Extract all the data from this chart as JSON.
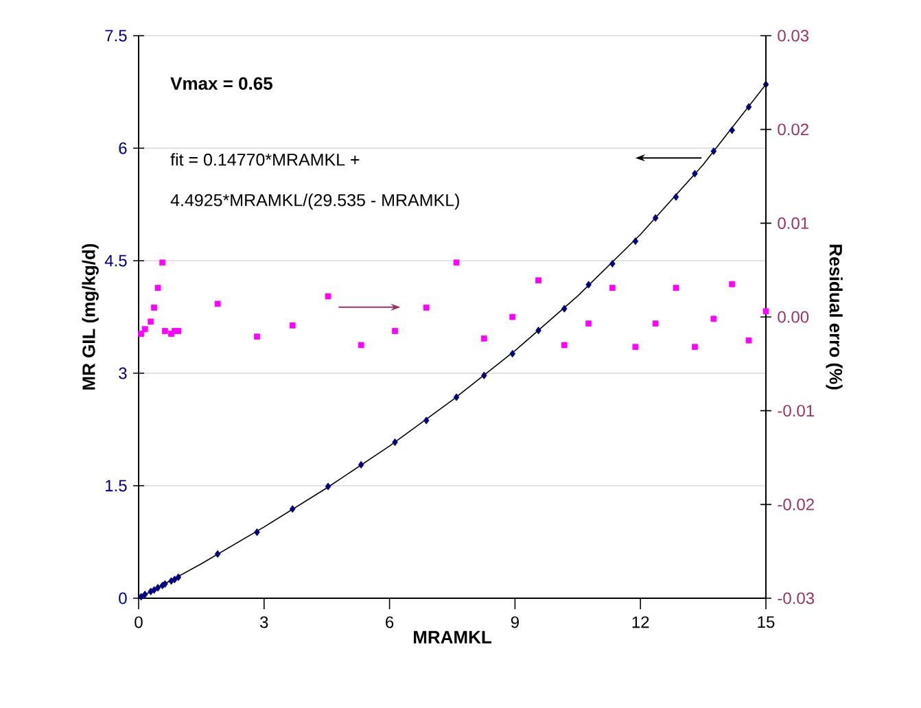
{
  "chart_data": {
    "type": "scatter",
    "xlabel": "MRAMKL",
    "ylabel": "MR GIL (mg/kg/d)",
    "y2label": "Residual erro (%)",
    "xlim": [
      0,
      15
    ],
    "xticks": [
      0,
      3,
      6,
      9,
      12,
      15
    ],
    "ylim": [
      0,
      7.5
    ],
    "yticks": [
      0,
      1.5,
      3,
      4.5,
      6,
      7.5
    ],
    "y2lim": [
      -0.03,
      0.03
    ],
    "y2ticks": [
      -0.03,
      -0.02,
      -0.01,
      {
        "value": 0,
        "label": "0.00"
      },
      0.01,
      0.02,
      0.03
    ],
    "grid": "y",
    "annotations": [
      "Vmax = 0.65",
      "fit  = 0.14770*MRAMKL +",
      "4.4925*MRAMKL/(29.535 - MRAMKL)"
    ],
    "series": [
      {
        "marker": "diamond",
        "color": "#000080",
        "x": [
          0.06,
          0.15,
          0.29,
          0.37,
          0.46,
          0.57,
          0.63,
          0.78,
          0.86,
          0.95,
          1.89,
          2.83,
          3.68,
          4.53,
          5.32,
          6.13,
          6.88,
          7.6,
          8.26,
          8.94,
          9.56,
          10.18,
          10.76,
          11.33,
          11.88,
          12.36,
          12.85,
          13.3,
          13.75,
          14.19,
          14.59,
          15.0
        ],
        "values": [
          0.02,
          0.05,
          0.09,
          0.11,
          0.14,
          0.17,
          0.19,
          0.23,
          0.25,
          0.28,
          0.59,
          0.88,
          1.19,
          1.49,
          1.78,
          2.08,
          2.37,
          2.68,
          2.97,
          3.26,
          3.57,
          3.86,
          4.18,
          4.46,
          4.76,
          5.07,
          5.35,
          5.66,
          5.96,
          6.24,
          6.55,
          6.85
        ]
      },
      {
        "type": "line",
        "marker": "none",
        "color": "#000000",
        "x": [
          0,
          1.5,
          3,
          4.5,
          6,
          7.5,
          9,
          10.5,
          12,
          13.5,
          15
        ],
        "values": [
          0,
          0.46,
          0.95,
          1.47,
          2.03,
          2.64,
          3.3,
          4.03,
          4.85,
          5.78,
          6.85
        ]
      },
      {
        "marker": "square",
        "axis": "y2",
        "color": "#ff00ff",
        "x": [
          0.06,
          0.15,
          0.29,
          0.37,
          0.46,
          0.57,
          0.63,
          0.78,
          0.86,
          0.95,
          1.89,
          2.83,
          3.68,
          4.53,
          5.32,
          6.13,
          6.88,
          7.6,
          8.26,
          8.94,
          9.56,
          10.18,
          10.76,
          11.33,
          11.88,
          12.36,
          12.85,
          13.3,
          13.75,
          14.19,
          14.59,
          15.0
        ],
        "values": [
          -0.0018,
          -0.0013,
          -0.0005,
          0.001,
          0.0031,
          0.0058,
          -0.0015,
          -0.0018,
          -0.0015,
          -0.0015,
          0.0014,
          -0.0021,
          -0.0009,
          0.0022,
          -0.003,
          -0.0015,
          0.001,
          0.0058,
          -0.0023,
          0.0,
          0.0039,
          -0.003,
          -0.0007,
          0.0031,
          -0.0032,
          -0.0007,
          0.0031,
          -0.0032,
          -0.0002,
          0.0035,
          -0.0025,
          0.0006
        ]
      }
    ]
  }
}
